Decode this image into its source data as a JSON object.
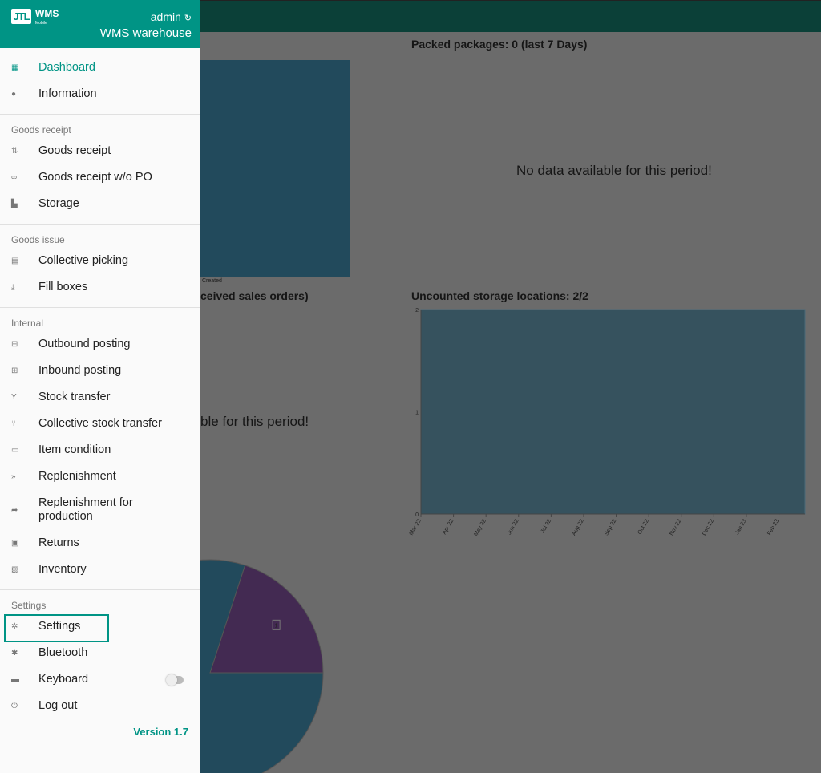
{
  "header": {
    "logo_text": "JTL",
    "app": "WMS",
    "app_sub": "Mobile",
    "user": "admin",
    "warehouse": "WMS warehouse"
  },
  "sidebar": {
    "top": [
      {
        "label": "Dashboard",
        "icon": "dashboard-icon",
        "active": true
      },
      {
        "label": "Information",
        "icon": "info-icon"
      }
    ],
    "sections": [
      {
        "title": "Goods receipt",
        "items": [
          {
            "label": "Goods receipt",
            "icon": "arrows-updown-icon"
          },
          {
            "label": "Goods receipt w/o PO",
            "icon": "infinity-icon"
          },
          {
            "label": "Storage",
            "icon": "storage-icon"
          }
        ]
      },
      {
        "title": "Goods issue",
        "items": [
          {
            "label": "Collective picking",
            "icon": "clipboard-icon"
          },
          {
            "label": "Fill boxes",
            "icon": "download-icon"
          }
        ]
      },
      {
        "title": "Internal",
        "items": [
          {
            "label": "Outbound posting",
            "icon": "minus-box-icon"
          },
          {
            "label": "Inbound posting",
            "icon": "plus-box-icon"
          },
          {
            "label": "Stock transfer",
            "icon": "merge-icon"
          },
          {
            "label": "Collective stock transfer",
            "icon": "multi-merge-icon"
          },
          {
            "label": "Item condition",
            "icon": "item-condition-icon"
          },
          {
            "label": "Replenishment",
            "icon": "fast-forward-icon"
          },
          {
            "label": "Replenishment for production",
            "icon": "share-arrow-icon"
          },
          {
            "label": "Returns",
            "icon": "returns-icon"
          },
          {
            "label": "Inventory",
            "icon": "inventory-icon"
          }
        ]
      },
      {
        "title": "Settings",
        "items": [
          {
            "label": "Settings",
            "icon": "gear-icon"
          },
          {
            "label": "Bluetooth",
            "icon": "bluetooth-icon"
          },
          {
            "label": "Keyboard",
            "icon": "keyboard-icon",
            "toggle": false
          },
          {
            "label": "Log out",
            "icon": "power-icon"
          }
        ]
      }
    ],
    "version": "Version 1.7"
  },
  "main": {
    "packed_title": "Packed packages: 0 (last 7 Days)",
    "packed_nodata": "No data available for this period!",
    "left_bar_label": "Created",
    "sales_title": "ceived sales orders)",
    "sales_nodata": "ble for this period!",
    "uncounted_title": "Uncounted storage locations: 2/2"
  },
  "chart_data": [
    {
      "type": "area",
      "title": "Uncounted storage locations: 2/2",
      "categories": [
        "Mar 22",
        "Apr 22",
        "May 22",
        "Jun 22",
        "Jul 22",
        "Aug 22",
        "Sep 22",
        "Oct 22",
        "Nov 22",
        "Dec 22",
        "Jan 23",
        "Feb 23"
      ],
      "values": [
        2,
        2,
        2,
        2,
        2,
        2,
        2,
        2,
        2,
        2,
        2,
        2
      ],
      "yticks": [
        "0",
        "1",
        "2"
      ],
      "ylim": [
        0,
        2
      ],
      "color": "#36525e"
    },
    {
      "type": "pie",
      "slices": [
        {
          "label": "1",
          "value": 20,
          "color": "#432a52"
        },
        {
          "value": 80,
          "color": "#224a5c"
        }
      ]
    }
  ],
  "colors": {
    "accent": "#009485",
    "topbar": "#0b4038"
  }
}
